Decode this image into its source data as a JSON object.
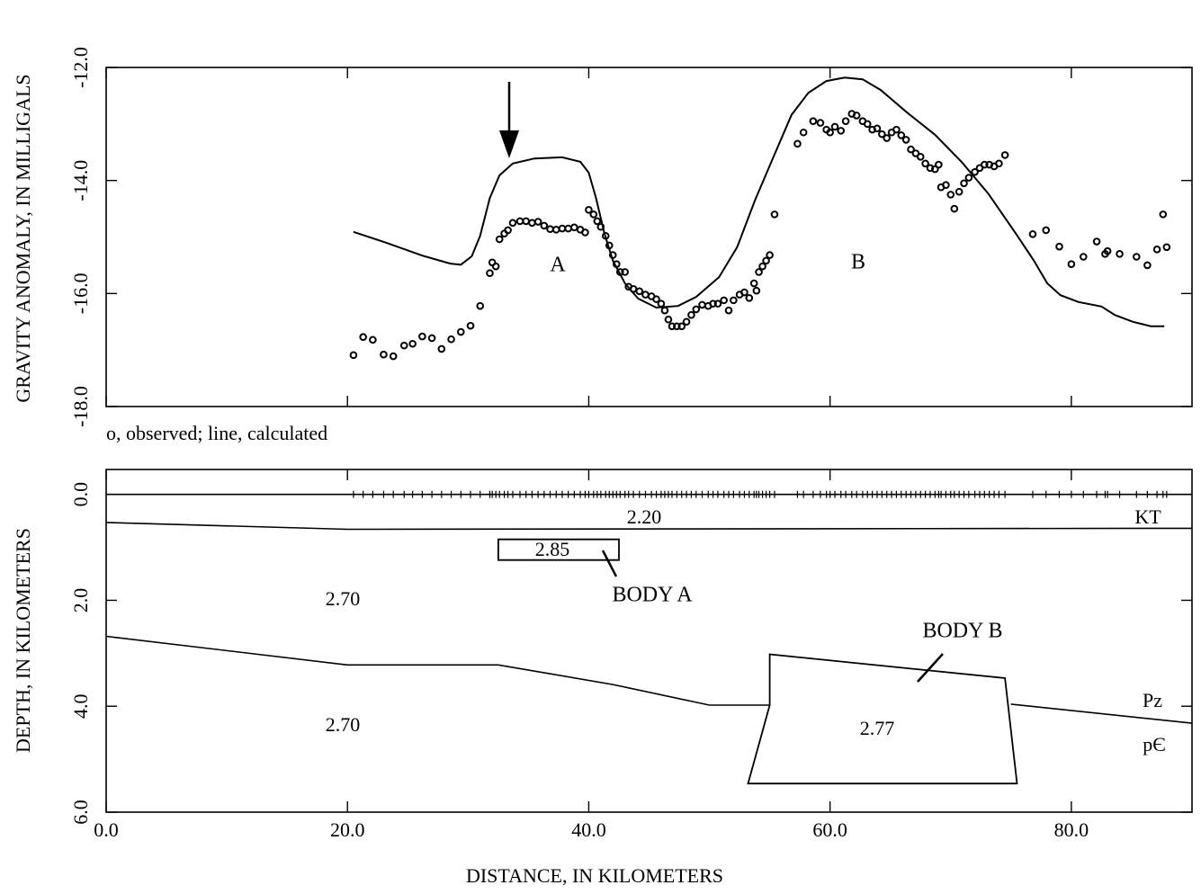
{
  "chart_data": [
    {
      "type": "profile",
      "ylabel": "GRAVITY ANOMALY, IN MILLIGALS",
      "caption": "o, observed; line, calculated",
      "annotations": [
        "A",
        "B"
      ],
      "xlim": [
        0,
        90
      ],
      "ylim": [
        -18,
        -12
      ],
      "yticks": [
        {
          "value": -12,
          "label": "-12.0"
        },
        {
          "value": -14,
          "label": "-14.0"
        },
        {
          "value": -16,
          "label": "-16.0"
        },
        {
          "value": -18,
          "label": "-18.0"
        }
      ],
      "series": [
        {
          "marker": "circle",
          "color": "#000000",
          "x": [
            20.5,
            21.3,
            22.1,
            23.0,
            23.8,
            24.7,
            25.4,
            26.2,
            27.0,
            27.8,
            28.6,
            29.4,
            30.2,
            31.0,
            31.8,
            32.0,
            32.3,
            32.6,
            33.0,
            33.3,
            33.7,
            34.3,
            34.8,
            35.3,
            35.8,
            36.3,
            36.8,
            37.3,
            37.8,
            38.3,
            38.8,
            39.3,
            39.7,
            40.0,
            40.4,
            40.7,
            41.0,
            41.4,
            41.7,
            42.0,
            42.3,
            42.6,
            43.0,
            43.3,
            43.7,
            44.2,
            44.7,
            45.2,
            45.6,
            46.0,
            46.3,
            46.6,
            46.9,
            47.3,
            47.7,
            48.1,
            48.5,
            48.9,
            49.4,
            49.9,
            50.3,
            50.7,
            51.2,
            51.6,
            52.0,
            52.5,
            52.9,
            53.3,
            53.7,
            53.9,
            54.1,
            54.4,
            54.7,
            55.0,
            55.4,
            57.3,
            57.8,
            58.6,
            59.2,
            59.7,
            60.0,
            60.4,
            60.9,
            61.3,
            61.8,
            62.2,
            62.7,
            63.1,
            63.5,
            63.9,
            64.3,
            64.7,
            65.1,
            65.5,
            65.9,
            66.3,
            66.7,
            67.1,
            67.5,
            67.9,
            68.3,
            68.7,
            69.0,
            69.2,
            69.6,
            70.0,
            70.3,
            70.7,
            71.1,
            71.5,
            72.0,
            72.4,
            72.8,
            73.2,
            73.6,
            74.0,
            74.5,
            76.8,
            77.9,
            79.0,
            80.0,
            81.0,
            82.1,
            82.8,
            83.0,
            84.0,
            85.4,
            86.3,
            87.1,
            87.6,
            87.9
          ],
          "values": [
            -17.09,
            -16.77,
            -16.82,
            -17.08,
            -17.11,
            -16.92,
            -16.89,
            -16.76,
            -16.79,
            -16.98,
            -16.81,
            -16.68,
            -16.57,
            -16.22,
            -15.64,
            -15.45,
            -15.52,
            -15.04,
            -14.94,
            -14.88,
            -14.75,
            -14.72,
            -14.72,
            -14.75,
            -14.73,
            -14.8,
            -14.86,
            -14.87,
            -14.85,
            -14.85,
            -14.83,
            -14.87,
            -14.92,
            -14.52,
            -14.6,
            -14.72,
            -14.82,
            -14.98,
            -15.15,
            -15.32,
            -15.48,
            -15.62,
            -15.62,
            -15.88,
            -15.92,
            -15.96,
            -16.02,
            -16.05,
            -16.1,
            -16.18,
            -16.3,
            -16.46,
            -16.58,
            -16.58,
            -16.58,
            -16.5,
            -16.38,
            -16.28,
            -16.2,
            -16.22,
            -16.18,
            -16.18,
            -16.12,
            -16.3,
            -16.12,
            -16.02,
            -15.98,
            -16.08,
            -15.82,
            -15.95,
            -15.62,
            -15.52,
            -15.42,
            -15.32,
            -14.6,
            -13.35,
            -13.15,
            -12.95,
            -12.98,
            -13.1,
            -13.15,
            -13.05,
            -13.12,
            -12.95,
            -12.82,
            -12.85,
            -12.95,
            -13.0,
            -13.1,
            -13.08,
            -13.18,
            -13.25,
            -13.15,
            -13.1,
            -13.2,
            -13.28,
            -13.45,
            -13.52,
            -13.58,
            -13.7,
            -13.78,
            -13.8,
            -13.72,
            -14.12,
            -14.08,
            -14.25,
            -14.5,
            -14.2,
            -14.05,
            -13.95,
            -13.85,
            -13.78,
            -13.72,
            -13.72,
            -13.75,
            -13.7,
            -13.55,
            -14.95,
            -14.88,
            -15.17,
            -15.48,
            -15.35,
            -15.08,
            -15.3,
            -15.25,
            -15.3,
            -15.35,
            -15.5,
            -15.22,
            -14.6,
            -15.18
          ]
        },
        {
          "marker": "line",
          "color": "#000000",
          "x": [
            20.5,
            23.2,
            26.2,
            28.5,
            29.4,
            30.3,
            31.0,
            31.8,
            32.6,
            33.7,
            35.5,
            37.8,
            39.3,
            40.0,
            40.6,
            41.3,
            42.0,
            43.0,
            44.1,
            45.6,
            47.4,
            48.9,
            50.8,
            52.3,
            53.8,
            55.3,
            56.8,
            58.2,
            59.7,
            61.2,
            62.7,
            64.2,
            66.4,
            68.7,
            70.9,
            73.1,
            75.4,
            76.9,
            78.0,
            79.1,
            80.6,
            82.5,
            83.6,
            85.1,
            86.6,
            87.7
          ],
          "values": [
            -14.91,
            -15.1,
            -15.33,
            -15.47,
            -15.49,
            -15.34,
            -14.98,
            -14.31,
            -13.91,
            -13.7,
            -13.61,
            -13.59,
            -13.67,
            -13.86,
            -14.31,
            -14.94,
            -15.42,
            -15.82,
            -16.09,
            -16.25,
            -16.22,
            -16.06,
            -15.71,
            -15.18,
            -14.34,
            -13.59,
            -12.84,
            -12.45,
            -12.24,
            -12.18,
            -12.21,
            -12.4,
            -12.8,
            -13.19,
            -13.67,
            -14.23,
            -14.94,
            -15.42,
            -15.82,
            -16.03,
            -16.15,
            -16.23,
            -16.38,
            -16.5,
            -16.58,
            -16.58
          ]
        }
      ]
    },
    {
      "type": "section",
      "xlabel": "DISTANCE, IN KILOMETERS",
      "ylabel": "DEPTH, IN KILOMETERS",
      "xlim": [
        0,
        90
      ],
      "ylim": [
        6,
        -0.47
      ],
      "xticks": [
        {
          "value": 0,
          "label": "0.0"
        },
        {
          "value": 20,
          "label": "20.0"
        },
        {
          "value": 40,
          "label": "40.0"
        },
        {
          "value": 60,
          "label": "60.0"
        },
        {
          "value": 80,
          "label": "80.0"
        }
      ],
      "yticks": [
        {
          "value": 0,
          "label": "0.0"
        },
        {
          "value": 2,
          "label": "2.0"
        },
        {
          "value": 4,
          "label": "4.0"
        },
        {
          "value": 6,
          "label": "6.0"
        }
      ],
      "boundaries": [
        {
          "x": [
            0,
            90
          ],
          "values": [
            0,
            0
          ]
        },
        {
          "x": [
            0,
            20,
            90
          ],
          "values": [
            0.53,
            0.66,
            0.64
          ]
        },
        {
          "x": [
            0,
            20,
            32.5,
            42,
            50,
            55,
            null,
            75,
            90
          ],
          "values": [
            2.68,
            3.22,
            3.22,
            3.59,
            3.98,
            3.98,
            null,
            3.96,
            4.32
          ]
        }
      ],
      "bodies": [
        {
          "label": "BODY A",
          "density": "2.85",
          "x": [
            32.5,
            42.5,
            42.5,
            32.5
          ],
          "values": [
            0.85,
            0.85,
            1.24,
            1.24
          ]
        },
        {
          "label": "BODY B",
          "density": "2.77",
          "x": [
            53.2,
            55,
            55,
            74.5,
            75.5
          ],
          "values": [
            5.46,
            3.98,
            3.02,
            3.47,
            5.46
          ]
        }
      ],
      "densities": [
        "2.20",
        "2.70",
        "2.70"
      ],
      "units": [
        "KT",
        "Pz",
        "pЄ"
      ]
    }
  ]
}
